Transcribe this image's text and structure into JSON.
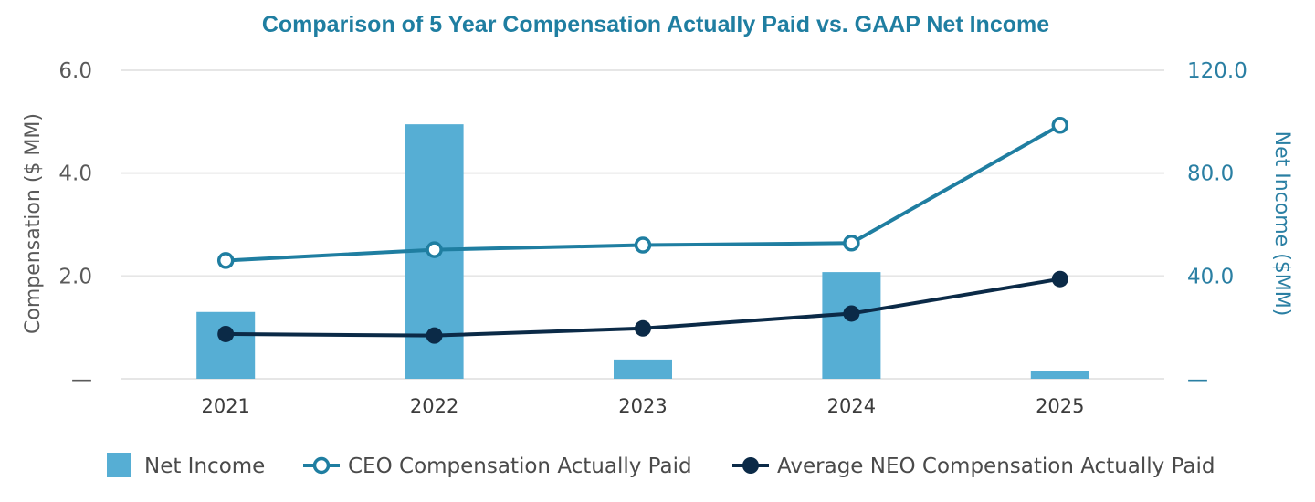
{
  "colors": {
    "title": "#1f7ea1",
    "bar": "#56aed4",
    "ceo_line": "#1f7ea1",
    "neo_line": "#0b2a47",
    "grid": "#e6e6e6",
    "left_axis_text": "#5a5a5a",
    "right_axis_text": "#2a7fa3"
  },
  "chart_data": {
    "type": "bar+line",
    "title": "Comparison of 5 Year Compensation Actually Paid vs. GAAP Net Income",
    "categories": [
      "2021",
      "2022",
      "2023",
      "2024",
      "2025"
    ],
    "y_left": {
      "label": "Compensation ($ MM)",
      "range": [
        0,
        6
      ],
      "ticks": [
        {
          "value": 0,
          "label": "—"
        },
        {
          "value": 2,
          "label": "2.0"
        },
        {
          "value": 4,
          "label": "4.0"
        },
        {
          "value": 6,
          "label": "6.0"
        }
      ]
    },
    "y_right": {
      "label": "Net Income ($MM)",
      "range": [
        0,
        120
      ],
      "ticks": [
        {
          "value": 0,
          "label": "—"
        },
        {
          "value": 40,
          "label": "40.0"
        },
        {
          "value": 80,
          "label": "80.0"
        },
        {
          "value": 120,
          "label": "120.0"
        }
      ]
    },
    "grid": true,
    "legend_position": "bottom",
    "series": [
      {
        "name": "Net Income",
        "kind": "bar",
        "axis": "right",
        "values": [
          26.0,
          99.0,
          7.5,
          41.5,
          3.0
        ]
      },
      {
        "name": "CEO Compensation Actually Paid",
        "kind": "line",
        "marker": "open-circle",
        "axis": "left",
        "values": [
          2.3,
          2.51,
          2.6,
          2.64,
          4.93
        ]
      },
      {
        "name": "Average NEO Compensation Actually Paid",
        "kind": "line",
        "marker": "filled-circle",
        "axis": "left",
        "values": [
          0.87,
          0.84,
          0.98,
          1.27,
          1.94
        ]
      }
    ]
  }
}
